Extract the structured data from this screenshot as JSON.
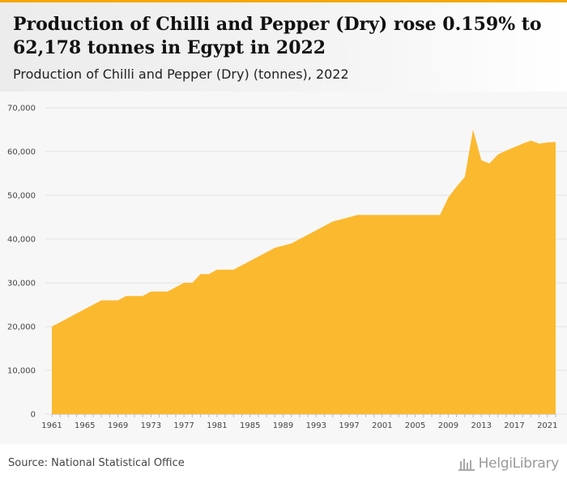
{
  "header": {
    "title": "Production of Chilli and Pepper (Dry) rose 0.159% to 62,178 tonnes in Egypt in 2022",
    "subtitle": "Production of Chilli and Pepper (Dry) (tonnes), 2022"
  },
  "footer": {
    "source": "Source: National Statistical Office",
    "brand": "HelgiLibrary"
  },
  "colors": {
    "accent": "#f5a800",
    "area_fill": "#fbb92f",
    "grid": "#e3e3e3"
  },
  "chart_data": {
    "type": "area",
    "title": "Production of Chilli and Pepper (Dry) rose 0.159% to 62,178 tonnes in Egypt in 2022",
    "subtitle": "Production of Chilli and Pepper (Dry) (tonnes), 2022",
    "xlabel": "",
    "ylabel": "",
    "ylim": [
      0,
      70000
    ],
    "y_ticks": [
      0,
      10000,
      20000,
      30000,
      40000,
      50000,
      60000,
      70000
    ],
    "y_tick_labels": [
      "0",
      "10,000",
      "20,000",
      "30,000",
      "40,000",
      "50,000",
      "60,000",
      "70,000"
    ],
    "x_ticks": [
      1961,
      1965,
      1969,
      1973,
      1977,
      1981,
      1985,
      1989,
      1993,
      1997,
      2001,
      2005,
      2009,
      2013,
      2017,
      2021
    ],
    "grid": true,
    "legend": "none",
    "series": [
      {
        "x": [
          1961,
          1962,
          1963,
          1964,
          1965,
          1966,
          1967,
          1968,
          1969,
          1970,
          1971,
          1972,
          1973,
          1974,
          1975,
          1976,
          1977,
          1978,
          1979,
          1980,
          1981,
          1982,
          1983,
          1984,
          1985,
          1986,
          1987,
          1988,
          1989,
          1990,
          1991,
          1992,
          1993,
          1994,
          1995,
          1996,
          1997,
          1998,
          1999,
          2000,
          2001,
          2002,
          2003,
          2004,
          2005,
          2006,
          2007,
          2008,
          2009,
          2010,
          2011,
          2012,
          2013,
          2014,
          2015,
          2016,
          2017,
          2018,
          2019,
          2020,
          2021,
          2022
        ],
        "values": [
          20000,
          21000,
          22000,
          23000,
          24000,
          25000,
          26000,
          26000,
          26000,
          27000,
          27000,
          27000,
          28000,
          28000,
          28000,
          29000,
          30000,
          30000,
          32000,
          32000,
          33000,
          33000,
          33000,
          34000,
          35000,
          36000,
          37000,
          38000,
          38500,
          39000,
          40000,
          41000,
          42000,
          43000,
          44000,
          44500,
          45000,
          45500,
          45500,
          45500,
          45500,
          45500,
          45500,
          45500,
          45500,
          45500,
          45500,
          45500,
          49500,
          52000,
          54200,
          65000,
          58000,
          57300,
          59300,
          60200,
          61000,
          61800,
          62500,
          61800,
          62080,
          62178
        ]
      }
    ]
  }
}
